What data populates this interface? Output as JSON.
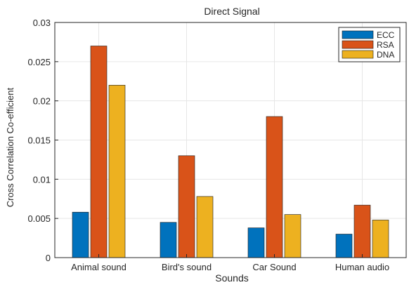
{
  "chart_data": {
    "type": "bar",
    "title": "Direct Signal",
    "xlabel": "Sounds",
    "ylabel": "Cross Correlation Co-efficient",
    "categories": [
      "Animal sound",
      "Bird's sound",
      "Car Sound",
      "Human audio"
    ],
    "series": [
      {
        "name": "ECC",
        "color": "#0072BD",
        "values": [
          0.0058,
          0.0045,
          0.0038,
          0.003
        ]
      },
      {
        "name": "RSA",
        "color": "#D95319",
        "values": [
          0.027,
          0.013,
          0.018,
          0.0067
        ]
      },
      {
        "name": "DNA",
        "color": "#EDB120",
        "values": [
          0.022,
          0.0078,
          0.0055,
          0.0048
        ]
      }
    ],
    "ylim": [
      0,
      0.03
    ],
    "yticks": [
      0,
      0.005,
      0.01,
      0.015,
      0.02,
      0.025,
      0.03
    ],
    "ytick_labels": [
      "0",
      "0.005",
      "0.01",
      "0.015",
      "0.02",
      "0.025",
      "0.03"
    ],
    "grid": true,
    "legend_position": "top-right"
  }
}
